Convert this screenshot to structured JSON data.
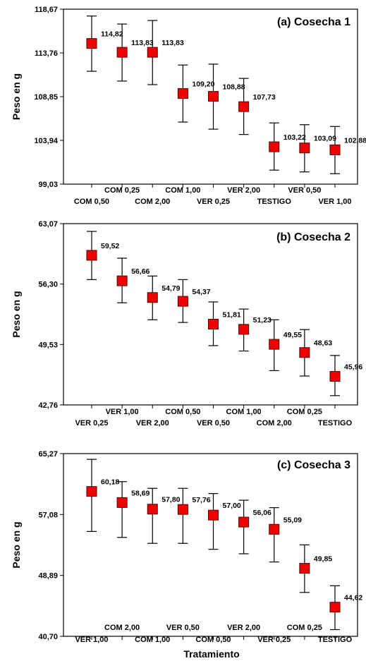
{
  "chart_data": [
    {
      "type": "scatter",
      "title": "(a) Cosecha 1",
      "ylabel": "Peso en g",
      "xlabel": "",
      "ylim": [
        99.03,
        118.67
      ],
      "yticks": [
        "99,03",
        "103,94",
        "108,85",
        "113,76",
        "118,67"
      ],
      "categories": [
        "COM 0,50",
        "COM 0,25",
        "COM 2,00",
        "COM 1,00",
        "VER 0,25",
        "VER 2,00",
        "TESTIGO",
        "VER 0,50",
        "VER 1,00"
      ],
      "values": [
        114.82,
        113.83,
        113.83,
        109.2,
        108.88,
        107.73,
        103.22,
        103.09,
        102.88
      ],
      "value_labels": [
        "114,82",
        "113,83",
        "113,83",
        "109,20",
        "108,88",
        "107,73",
        "103,22",
        "103,09",
        "102,88"
      ],
      "error_low": [
        111.7,
        110.6,
        110.2,
        106.0,
        105.2,
        104.6,
        100.6,
        100.4,
        100.2
      ],
      "error_high": [
        117.9,
        117.0,
        117.4,
        112.4,
        112.5,
        110.9,
        105.9,
        105.7,
        105.5
      ]
    },
    {
      "type": "scatter",
      "title": "(b) Cosecha 2",
      "ylabel": "Peso en g",
      "xlabel": "",
      "ylim": [
        42.76,
        63.07
      ],
      "yticks": [
        "42,76",
        "49,53",
        "56,30",
        "63,07"
      ],
      "categories": [
        "VER 0,25",
        "VER 1,00",
        "VER 2,00",
        "COM 0,50",
        "VER 0,50",
        "COM 1,00",
        "COM 2,00",
        "COM 0,25",
        "TESTIGO"
      ],
      "values": [
        59.52,
        56.66,
        54.79,
        54.37,
        51.81,
        51.23,
        49.55,
        48.63,
        45.96
      ],
      "value_labels": [
        "59,52",
        "56,66",
        "54,79",
        "54,37",
        "51,81",
        "51,23",
        "49,55",
        "48,63",
        "45,96"
      ],
      "error_low": [
        56.8,
        54.2,
        52.3,
        52.0,
        49.4,
        48.8,
        46.6,
        46.0,
        43.8
      ],
      "error_high": [
        62.2,
        59.2,
        57.2,
        56.8,
        54.3,
        53.5,
        52.3,
        51.2,
        48.3
      ]
    },
    {
      "type": "scatter",
      "title": "(c) Cosecha 3",
      "ylabel": "Peso en g",
      "xlabel": "Tratamiento",
      "ylim": [
        40.7,
        65.27
      ],
      "yticks": [
        "40,70",
        "48,89",
        "57,08",
        "65,27"
      ],
      "categories": [
        "VER 1,00",
        "COM 2,00",
        "COM 1,00",
        "VER 0,50",
        "COM 0,50",
        "VER 2,00",
        "VER 0,25",
        "COM 0,25",
        "TESTIGO"
      ],
      "values": [
        60.18,
        58.69,
        57.8,
        57.76,
        57.0,
        56.06,
        55.09,
        49.85,
        44.62
      ],
      "value_labels": [
        "60,18",
        "58,69",
        "57,80",
        "57,76",
        "57,00",
        "56,06",
        "55,09",
        "49,85",
        "44,62"
      ],
      "error_low": [
        54.8,
        54.0,
        53.2,
        53.2,
        52.4,
        51.8,
        50.7,
        46.6,
        41.6
      ],
      "error_high": [
        64.5,
        61.5,
        60.6,
        60.6,
        59.9,
        59.0,
        58.0,
        53.0,
        47.5
      ]
    }
  ],
  "colors": {
    "marker_fill": "#ee0000",
    "marker_stroke": "#5a0000",
    "axis": "#000000",
    "error_bar": "#000000"
  }
}
